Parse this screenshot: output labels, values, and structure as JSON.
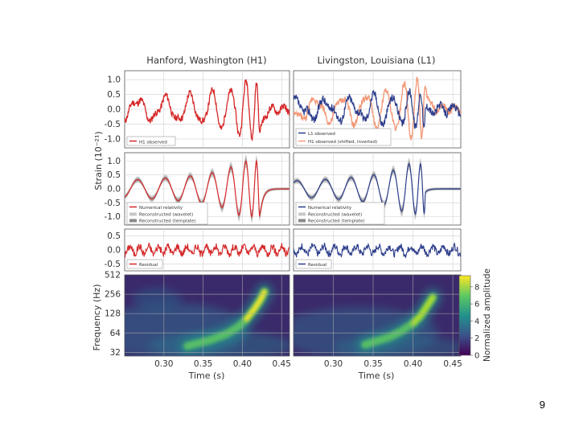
{
  "page_number": "9",
  "colors": {
    "h1": "#d62728",
    "l1": "#2d3e8c",
    "h1_shifted": "#f39a7a",
    "band_wavelet": "#c8c8c8",
    "band_template": "#8a8a8a",
    "grid": "#bbbbbb",
    "colormap": [
      "#440154",
      "#3b528b",
      "#21918c",
      "#5ec962",
      "#fde725"
    ]
  },
  "chart_data": [
    {
      "type": "line",
      "panel": "h1-observed",
      "title": "Hanford, Washington (H1)",
      "xlim": [
        0.25,
        0.46
      ],
      "ylim": [
        -1.3,
        1.3
      ],
      "yticks": [
        "1.0",
        "0.5",
        "0.0",
        "-0.5",
        "-1.0"
      ],
      "ylabel": "Strain (10⁻²¹)",
      "grid": true,
      "legend": [
        "H1 observed"
      ],
      "legend_position": "lower-left",
      "series": [
        {
          "name": "H1 observed",
          "color": "h1",
          "x": [
            0.25,
            0.275,
            0.3,
            0.32,
            0.34,
            0.36,
            0.375,
            0.39,
            0.4,
            0.41,
            0.42,
            0.43,
            0.44,
            0.46
          ],
          "y": [
            0.0,
            0.2,
            -0.1,
            0.2,
            -0.3,
            0.3,
            -0.5,
            0.5,
            -0.8,
            1.1,
            -1.0,
            0.8,
            -0.2,
            0.1
          ]
        }
      ]
    },
    {
      "type": "line",
      "panel": "l1-observed",
      "title": "Livingston, Louisiana (L1)",
      "xlim": [
        0.25,
        0.46
      ],
      "ylim": [
        -1.3,
        1.3
      ],
      "grid": true,
      "legend": [
        "L1 observed",
        "H1 observed (shifted, inverted)"
      ],
      "legend_position": "lower-left",
      "series": [
        {
          "name": "L1 observed",
          "color": "l1",
          "x": [
            0.25,
            0.275,
            0.3,
            0.32,
            0.34,
            0.36,
            0.375,
            0.39,
            0.4,
            0.41,
            0.42,
            0.43,
            0.44,
            0.46
          ],
          "y": [
            0.0,
            0.3,
            -0.2,
            0.3,
            -0.4,
            0.4,
            -0.5,
            0.6,
            -0.7,
            0.9,
            -0.8,
            0.5,
            -0.2,
            0.1
          ]
        },
        {
          "name": "H1 observed (shifted, inverted)",
          "color": "h1_shifted",
          "x": [
            0.25,
            0.275,
            0.3,
            0.32,
            0.34,
            0.36,
            0.375,
            0.39,
            0.4,
            0.41,
            0.42,
            0.43,
            0.44,
            0.46
          ],
          "y": [
            0.1,
            -0.2,
            0.2,
            -0.3,
            0.3,
            -0.4,
            0.5,
            -0.6,
            0.8,
            -1.1,
            1.0,
            -0.8,
            0.2,
            0.0
          ]
        }
      ]
    },
    {
      "type": "line",
      "panel": "h1-reconstructed",
      "xlim": [
        0.25,
        0.46
      ],
      "ylim": [
        -1.3,
        1.3
      ],
      "yticks": [
        "1.0",
        "0.5",
        "0.0",
        "-0.5",
        "-1.0"
      ],
      "grid": true,
      "legend": [
        "Numerical relativity",
        "Reconstructed (wavelet)",
        "Reconstructed (template)"
      ],
      "legend_position": "lower-left",
      "series": [
        {
          "name": "Numerical relativity",
          "color": "h1",
          "x": [
            0.25,
            0.3,
            0.34,
            0.36,
            0.38,
            0.39,
            0.4,
            0.41,
            0.42,
            0.43,
            0.44,
            0.46
          ],
          "y": [
            0.0,
            0.1,
            0.2,
            0.3,
            0.4,
            0.6,
            0.8,
            1.0,
            1.0,
            0.6,
            0.1,
            0.0
          ]
        }
      ]
    },
    {
      "type": "line",
      "panel": "l1-reconstructed",
      "xlim": [
        0.25,
        0.46
      ],
      "ylim": [
        -1.3,
        1.3
      ],
      "grid": true,
      "legend": [
        "Numerical relativity",
        "Reconstructed (wavelet)",
        "Reconstructed (template)"
      ],
      "legend_position": "lower-left",
      "series": [
        {
          "name": "Numerical relativity",
          "color": "l1",
          "x": [
            0.25,
            0.3,
            0.34,
            0.36,
            0.38,
            0.39,
            0.4,
            0.41,
            0.42,
            0.43,
            0.44,
            0.46
          ],
          "y": [
            0.0,
            0.1,
            0.2,
            0.3,
            0.4,
            0.5,
            0.7,
            0.85,
            0.85,
            0.5,
            0.1,
            0.0
          ]
        }
      ]
    },
    {
      "type": "line",
      "panel": "h1-residual",
      "xlim": [
        0.25,
        0.46
      ],
      "ylim": [
        -0.75,
        0.75
      ],
      "yticks": [
        "0.5",
        "0.0",
        "-0.5"
      ],
      "grid": true,
      "legend": [
        "Residual"
      ],
      "legend_position": "lower-left",
      "series": [
        {
          "name": "Residual",
          "color": "h1",
          "x": [
            0.25,
            0.46
          ],
          "y": [
            0.0,
            0.0
          ]
        }
      ]
    },
    {
      "type": "line",
      "panel": "l1-residual",
      "xlim": [
        0.25,
        0.46
      ],
      "ylim": [
        -0.75,
        0.75
      ],
      "grid": true,
      "legend": [
        "Residual"
      ],
      "legend_position": "lower-left",
      "series": [
        {
          "name": "Residual",
          "color": "l1",
          "x": [
            0.25,
            0.46
          ],
          "y": [
            0.0,
            0.0
          ]
        }
      ]
    },
    {
      "type": "heatmap",
      "panel": "h1-spectrogram",
      "xlabel": "Time (s)",
      "ylabel": "Frequency (Hz)",
      "xlim": [
        0.25,
        0.46
      ],
      "xticks": [
        "0.30",
        "0.35",
        "0.40",
        "0.45"
      ],
      "yscale": "log",
      "ylim": [
        28,
        512
      ],
      "yticks": [
        "512",
        "256",
        "128",
        "64",
        "32"
      ],
      "grid": true,
      "chirp": {
        "t": [
          0.33,
          0.36,
          0.38,
          0.395,
          0.405,
          0.415,
          0.423,
          0.428
        ],
        "f": [
          40,
          50,
          62,
          80,
          105,
          150,
          210,
          280
        ],
        "peak": 9
      }
    },
    {
      "type": "heatmap",
      "panel": "l1-spectrogram",
      "xlabel": "Time (s)",
      "xlim": [
        0.25,
        0.46
      ],
      "xticks": [
        "0.30",
        "0.35",
        "0.40",
        "0.45"
      ],
      "yscale": "log",
      "ylim": [
        28,
        512
      ],
      "grid": true,
      "chirp": {
        "t": [
          0.34,
          0.37,
          0.385,
          0.4,
          0.41,
          0.418,
          0.425
        ],
        "f": [
          42,
          55,
          68,
          90,
          120,
          170,
          230
        ],
        "peak": 7
      }
    },
    {
      "type": "colorbar",
      "label": "Normalized amplitude",
      "ticks": [
        "0",
        "2",
        "4",
        "6",
        "8"
      ],
      "range": [
        0,
        9.3
      ]
    }
  ]
}
